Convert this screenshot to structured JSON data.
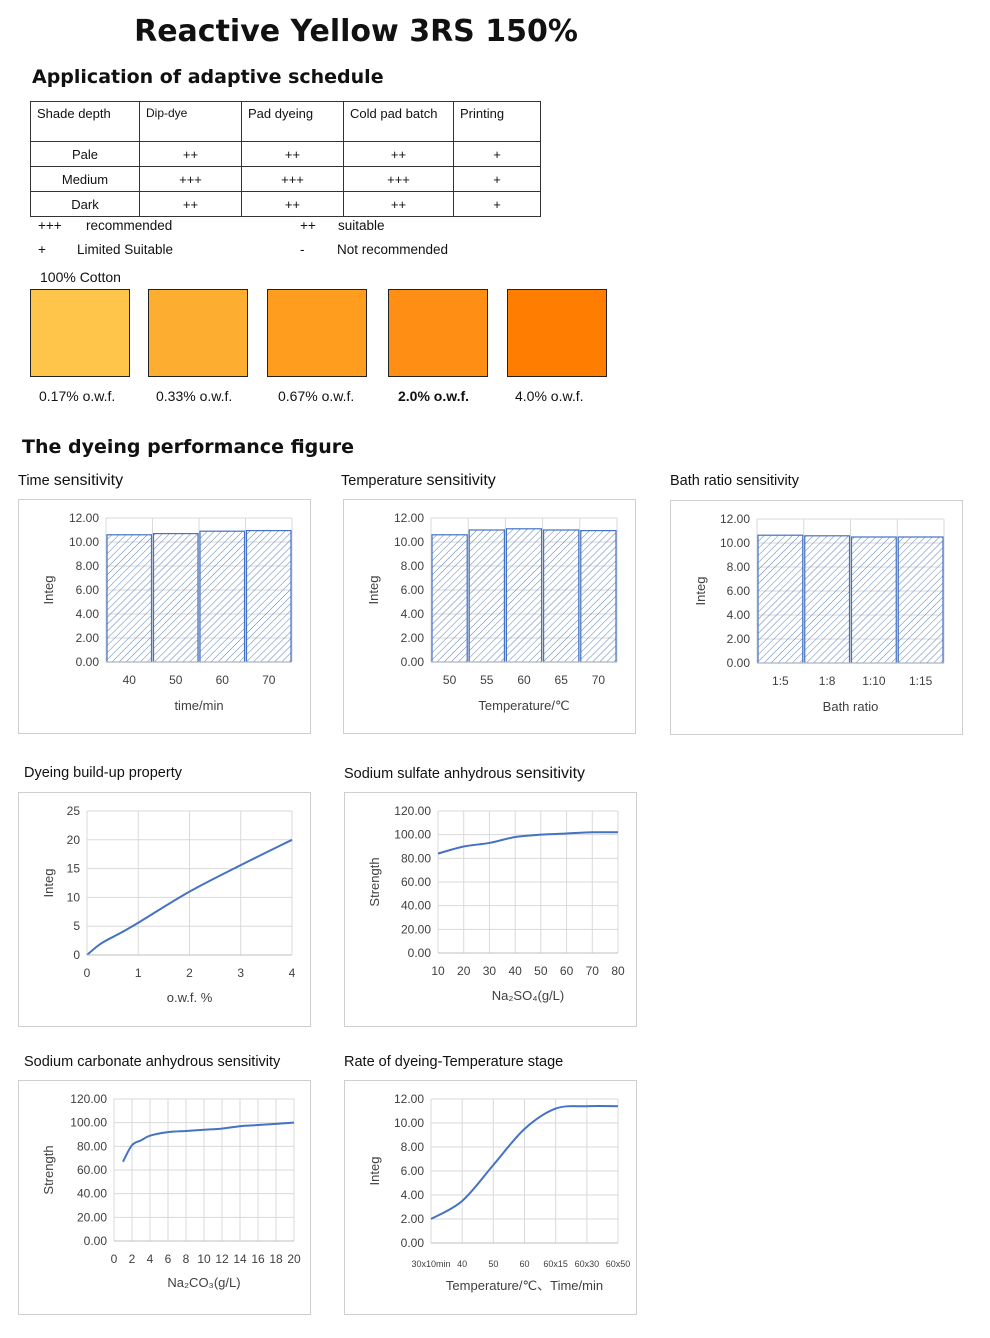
{
  "title": "Reactive Yellow 3RS 150%",
  "schedule": {
    "heading": "Application of adaptive schedule",
    "columns": [
      "Shade depth",
      "Dip-dye",
      "Pad dyeing",
      "Cold pad batch",
      "Printing"
    ],
    "rows": [
      [
        "Pale",
        "++",
        "++",
        "++",
        "+"
      ],
      [
        "Medium",
        "+++",
        "+++",
        "+++",
        "+"
      ],
      [
        "Dark",
        "++",
        "++",
        "++",
        "+"
      ]
    ],
    "legend": [
      {
        "symbol": "+++",
        "text": "recommended"
      },
      {
        "symbol": "++",
        "text": "suitable"
      },
      {
        "symbol": "+",
        "text": "Limited Suitable"
      },
      {
        "symbol": "-",
        "text": "Not recommended"
      }
    ]
  },
  "shades": {
    "substrate": "100% Cotton",
    "items": [
      {
        "label": "0.17% o.w.f.",
        "color": "#FFC54A",
        "bold": false
      },
      {
        "label": "0.33% o.w.f.",
        "color": "#FDAE30",
        "bold": false
      },
      {
        "label": "0.67% o.w.f.",
        "color": "#FF9E1E",
        "bold": false
      },
      {
        "label": "2.0% o.w.f.",
        "color": "#FF8E14",
        "bold": true
      },
      {
        "label": "4.0% o.w.f.",
        "color": "#FF7D00",
        "bold": false
      }
    ]
  },
  "performance_heading": "The dyeing performance figure",
  "colors": {
    "series": "#4472C4",
    "hatch": "#5B7FB3",
    "grid": "#D9D9D9",
    "axis_text": "#404040"
  },
  "chart_titles": {
    "time": {
      "prefix": "Time",
      "suffix": "sensitivity"
    },
    "temp": {
      "prefix": "Temperature",
      "suffix": "sensitivity"
    },
    "bath": {
      "prefix": "Bath ratio sensitivity",
      "suffix": ""
    },
    "buildup": {
      "prefix": "Dyeing build-up property",
      "suffix": ""
    },
    "sulfate": {
      "prefix": "Sodium sulfate anhydrous",
      "suffix": "sensitivity"
    },
    "carbonate": {
      "prefix": "Sodium carbonate anhydrous sensitivity",
      "suffix": ""
    },
    "rate": {
      "prefix": "Rate of dyeing-Temperature stage",
      "suffix": ""
    }
  },
  "chart_data": [
    {
      "id": "time",
      "type": "bar",
      "hatched": true,
      "ylabel": "Integ",
      "xlabel": "time/min",
      "categories": [
        "40",
        "50",
        "60",
        "70"
      ],
      "values": [
        10.6,
        10.7,
        10.9,
        10.95
      ],
      "ylim": [
        0,
        12
      ],
      "yticks": [
        "0.00",
        "2.00",
        "4.00",
        "6.00",
        "8.00",
        "10.00",
        "12.00"
      ],
      "grid": true
    },
    {
      "id": "temp",
      "type": "bar",
      "hatched": true,
      "ylabel": "Integ",
      "xlabel": "Temperature/℃",
      "categories": [
        "50",
        "55",
        "60",
        "65",
        "70"
      ],
      "values": [
        10.6,
        11.0,
        11.1,
        11.0,
        10.95
      ],
      "ylim": [
        0,
        12
      ],
      "yticks": [
        "0.00",
        "2.00",
        "4.00",
        "6.00",
        "8.00",
        "10.00",
        "12.00"
      ],
      "grid": true
    },
    {
      "id": "bath",
      "type": "bar",
      "hatched": true,
      "ylabel": "Integ",
      "xlabel": "Bath ratio",
      "categories": [
        "1:5",
        "1:8",
        "1:10",
        "1:15"
      ],
      "values": [
        10.65,
        10.6,
        10.5,
        10.5
      ],
      "ylim": [
        0,
        12
      ],
      "yticks": [
        "0.00",
        "2.00",
        "4.00",
        "6.00",
        "8.00",
        "10.00",
        "12.00"
      ],
      "grid": true
    },
    {
      "id": "buildup",
      "type": "line",
      "ylabel": "Integ",
      "xlabel": "o.w.f. %",
      "x": [
        0,
        0.17,
        0.33,
        0.67,
        1,
        2,
        3,
        4
      ],
      "values": [
        0,
        1.3,
        2.3,
        3.9,
        5.6,
        11.0,
        15.6,
        20.0
      ],
      "xlim": [
        0,
        4
      ],
      "ylim": [
        0,
        25
      ],
      "xticks": [
        "0",
        "1",
        "2",
        "3",
        "4"
      ],
      "yticks": [
        "0",
        "5",
        "10",
        "15",
        "20",
        "25"
      ],
      "grid": true
    },
    {
      "id": "sulfate",
      "type": "line",
      "ylabel": "Strength",
      "xlabel": "Na₂SO₄(g/L)",
      "x": [
        10,
        20,
        30,
        40,
        50,
        60,
        70,
        80
      ],
      "values": [
        84,
        90,
        93,
        98,
        100,
        101,
        102,
        102
      ],
      "xlim": [
        10,
        80
      ],
      "ylim": [
        0,
        120
      ],
      "xticks": [
        "10",
        "20",
        "30",
        "40",
        "50",
        "60",
        "70",
        "80"
      ],
      "yticks": [
        "0.00",
        "20.00",
        "40.00",
        "60.00",
        "80.00",
        "100.00",
        "120.00"
      ],
      "grid": true
    },
    {
      "id": "carbonate",
      "type": "line",
      "ylabel": "Strength",
      "xlabel": "Na₂CO₃(g/L)",
      "x": [
        1,
        2,
        3,
        4,
        6,
        8,
        10,
        12,
        14,
        16,
        18,
        20
      ],
      "values": [
        67,
        81,
        85,
        89,
        92,
        93,
        94,
        95,
        97,
        98,
        99,
        100
      ],
      "xlim": [
        0,
        20
      ],
      "ylim": [
        0,
        120
      ],
      "xticks": [
        "0",
        "2",
        "4",
        "6",
        "8",
        "10",
        "12",
        "14",
        "16",
        "18",
        "20"
      ],
      "yticks": [
        "0.00",
        "20.00",
        "40.00",
        "60.00",
        "80.00",
        "100.00",
        "120.00"
      ],
      "grid": true
    },
    {
      "id": "rate",
      "type": "line",
      "ylabel": "Integ",
      "xlabel": "Temperature/℃、Time/min",
      "categories": [
        "30x10min",
        "40",
        "50",
        "60",
        "60x15",
        "60x30",
        "60x50"
      ],
      "values": [
        2.0,
        3.5,
        6.5,
        9.5,
        11.2,
        11.4,
        11.4
      ],
      "ylim": [
        0,
        12
      ],
      "yticks": [
        "0.00",
        "2.00",
        "4.00",
        "6.00",
        "8.00",
        "10.00",
        "12.00"
      ],
      "grid": true
    }
  ]
}
